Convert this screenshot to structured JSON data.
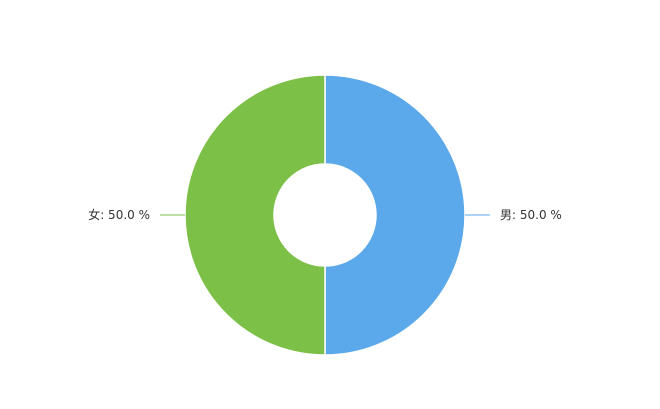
{
  "chart_data": {
    "type": "pie",
    "donut": true,
    "title": "",
    "legend": "none",
    "categories": [
      "男",
      "女"
    ],
    "values": [
      50.0,
      50.0
    ],
    "labels": [
      "男: 50.0 %",
      "女: 50.0 %"
    ],
    "colors": [
      "#5ba8ea",
      "#7dc048"
    ]
  }
}
